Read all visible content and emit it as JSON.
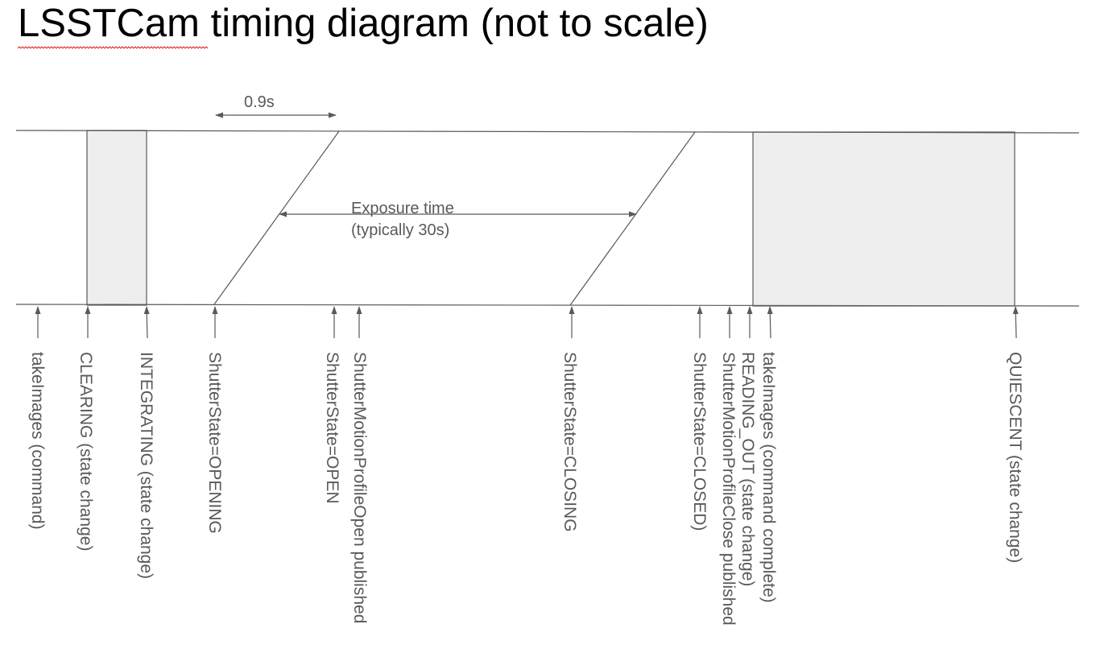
{
  "title": "LSSTCam timing diagram (not to scale)",
  "annotations": {
    "interval": "0.9s",
    "exposure_line1": "Exposure time",
    "exposure_line2": "(typically 30s)"
  },
  "events": [
    {
      "id": "take-images",
      "label": "takeImages (command)"
    },
    {
      "id": "clearing",
      "label": "CLEARING (state change)"
    },
    {
      "id": "integrating",
      "label": "INTEGRATING (state change)"
    },
    {
      "id": "shutter-opening",
      "label": "ShutterState=OPENING"
    },
    {
      "id": "shutter-open",
      "label": "ShutterState=OPEN"
    },
    {
      "id": "motion-open",
      "label": "ShutterMotionProfileOpen published"
    },
    {
      "id": "shutter-closing",
      "label": "ShutterState=CLOSING"
    },
    {
      "id": "shutter-closed",
      "label": "ShutterState=CLOSED)"
    },
    {
      "id": "motion-close",
      "label": "ShutterMotionProfileClose published"
    },
    {
      "id": "reading-out",
      "label": "READING_OUT (state change)"
    },
    {
      "id": "take-images-complete",
      "label": "takeImages (command complete)"
    },
    {
      "id": "quiescent",
      "label": "QUIESCENT (state change)"
    }
  ],
  "colors": {
    "line": "#595959",
    "box_fill": "#eeeeee",
    "title": "#000000",
    "label": "#595959",
    "spellcheck": "#e02020"
  }
}
